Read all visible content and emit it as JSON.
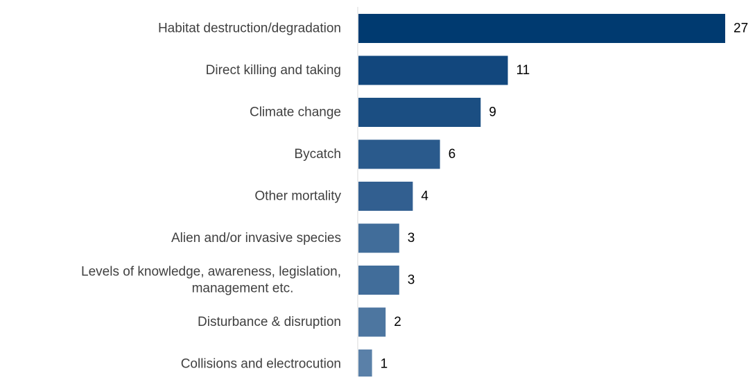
{
  "chart_data": {
    "type": "bar",
    "orientation": "horizontal",
    "categories": [
      [
        "Habitat destruction/degradation"
      ],
      [
        "Direct killing and taking"
      ],
      [
        "Climate change"
      ],
      [
        "Bycatch"
      ],
      [
        "Other mortality"
      ],
      [
        "Alien and/or invasive species"
      ],
      [
        "Levels of knowledge, awareness, legislation,",
        "management etc."
      ],
      [
        "Disturbance & disruption"
      ],
      [
        "Collisions and electrocution"
      ]
    ],
    "values": [
      27,
      11,
      9,
      6,
      4,
      3,
      3,
      2,
      1
    ],
    "value_labels": [
      "27",
      "11",
      "9",
      "6",
      "4",
      "3",
      "3",
      "2",
      "1"
    ],
    "xlim": [
      0,
      27
    ],
    "grid": false,
    "legend": "none",
    "colors": [
      "#003a70",
      "#12477d",
      "#1b4e82",
      "#2a5a8c",
      "#325f90",
      "#416d9a",
      "#416d9a",
      "#4d76a0",
      "#5a80a8"
    ]
  }
}
